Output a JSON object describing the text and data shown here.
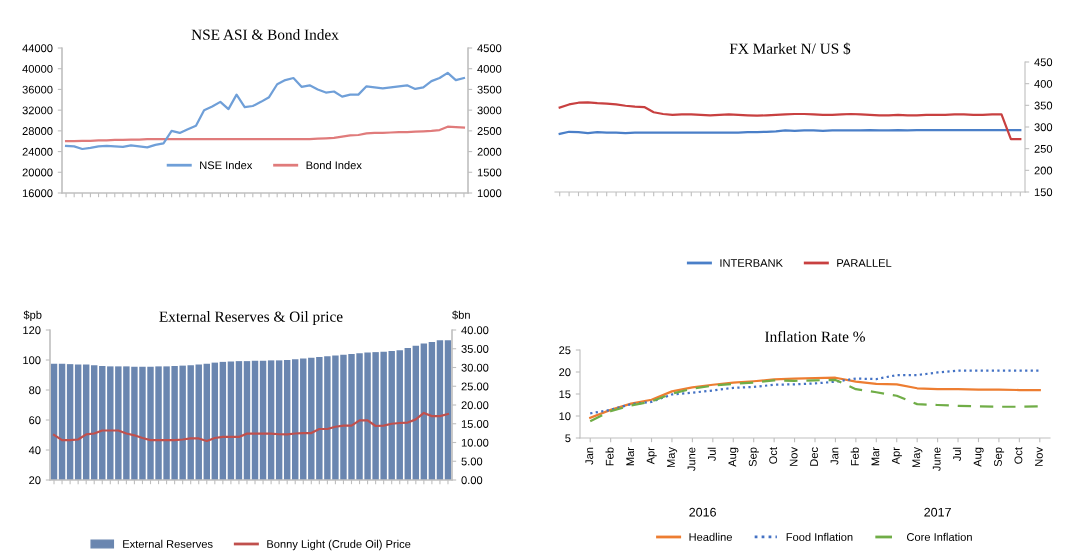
{
  "chart_data": [
    {
      "type": "line",
      "title": "NSE ASI & Bond Index",
      "categories": [
        null,
        null,
        null,
        null,
        null,
        null,
        null,
        null,
        null,
        null,
        null,
        null,
        null,
        null,
        null,
        null,
        null,
        null,
        null,
        null,
        null,
        null,
        null,
        null,
        null,
        null,
        null,
        null,
        null,
        null,
        null,
        null,
        null,
        null,
        null,
        null,
        null,
        null,
        null,
        null,
        null,
        null,
        null,
        null,
        null,
        null,
        null,
        null,
        null,
        null
      ],
      "series": [
        {
          "name": "NSE Index",
          "color": "#6f9fd8",
          "values": [
            25100,
            25000,
            24500,
            24700,
            25000,
            25100,
            25000,
            24900,
            25200,
            25000,
            24800,
            25300,
            25600,
            28000,
            27600,
            28300,
            29000,
            32000,
            32700,
            33600,
            32200,
            35000,
            32600,
            32800,
            33600,
            34500,
            37000,
            37800,
            38200,
            36500,
            36800,
            36000,
            35400,
            35600,
            34600,
            35000,
            35000,
            36600,
            36400,
            36200,
            36400,
            36600,
            36800,
            36100,
            36400,
            37600,
            38200,
            39200,
            37800,
            38200
          ]
        },
        {
          "name": "Bond Index",
          "color": "#e07b7b",
          "axis": "y2",
          "values": [
            2250,
            2250,
            2260,
            2260,
            2270,
            2270,
            2280,
            2280,
            2290,
            2290,
            2300,
            2300,
            2300,
            2300,
            2300,
            2300,
            2300,
            2300,
            2300,
            2300,
            2300,
            2300,
            2300,
            2300,
            2300,
            2300,
            2300,
            2300,
            2300,
            2300,
            2300,
            2310,
            2320,
            2330,
            2360,
            2390,
            2400,
            2440,
            2450,
            2450,
            2460,
            2470,
            2470,
            2480,
            2490,
            2500,
            2520,
            2600,
            2590,
            2580
          ]
        }
      ],
      "ylim": [
        16000,
        44000
      ],
      "yticks": [
        16000,
        20000,
        24000,
        28000,
        32000,
        36000,
        40000,
        44000
      ],
      "y2lim": [
        1000,
        4500
      ],
      "y2ticks": [
        1000,
        1500,
        2000,
        2500,
        3000,
        3500,
        4000,
        4500
      ],
      "line_style": "solid",
      "legend": "bottom inside"
    },
    {
      "type": "line",
      "title": "FX Market N/ US $",
      "categories": [
        null,
        null,
        null,
        null,
        null,
        null,
        null,
        null,
        null,
        null,
        null,
        null,
        null,
        null,
        null,
        null,
        null,
        null,
        null,
        null,
        null,
        null,
        null,
        null,
        null,
        null,
        null,
        null,
        null,
        null,
        null,
        null,
        null,
        null,
        null,
        null,
        null,
        null,
        null,
        null,
        null,
        null,
        null,
        null,
        null,
        null,
        null,
        null,
        null,
        null
      ],
      "series": [
        {
          "name": "INTERBANK",
          "color": "#4a7fc8",
          "values": [
            284,
            289,
            288,
            286,
            288,
            287,
            287,
            286,
            287,
            287,
            287,
            287,
            287,
            287,
            287,
            287,
            287,
            287,
            287,
            287,
            288,
            288,
            289,
            290,
            292,
            291,
            292,
            292,
            291,
            292,
            292,
            292,
            292,
            293,
            292,
            292,
            293,
            292,
            293,
            293,
            293,
            293,
            293,
            293,
            293,
            293,
            293,
            293,
            293,
            293
          ]
        },
        {
          "name": "PARALLEL",
          "color": "#c84040",
          "values": [
            345,
            352,
            356,
            357,
            355,
            354,
            352,
            349,
            347,
            346,
            334,
            330,
            328,
            329,
            329,
            328,
            327,
            328,
            329,
            328,
            327,
            326,
            327,
            328,
            329,
            330,
            330,
            329,
            328,
            328,
            329,
            330,
            329,
            328,
            327,
            327,
            328,
            327,
            327,
            328,
            328,
            328,
            329,
            329,
            328,
            328,
            329,
            329,
            272,
            272
          ]
        }
      ],
      "ylim": [
        150,
        450
      ],
      "yticks": [
        150,
        200,
        250,
        300,
        350,
        400,
        450
      ],
      "line_style": "solid",
      "legend": "bottom"
    },
    {
      "type": "bar",
      "title": "External Reserves & Oil price",
      "ylabel": "$pb",
      "y2label": "$bn",
      "categories": [
        null,
        null,
        null,
        null,
        null,
        null,
        null,
        null,
        null,
        null,
        null,
        null,
        null,
        null,
        null,
        null,
        null,
        null,
        null,
        null,
        null,
        null,
        null,
        null,
        null,
        null,
        null,
        null,
        null,
        null,
        null,
        null,
        null,
        null,
        null,
        null,
        null,
        null,
        null,
        null,
        null,
        null,
        null,
        null,
        null,
        null,
        null,
        null,
        null,
        null
      ],
      "series": [
        {
          "name": "External Reserves",
          "color": "#6a86b0",
          "axis": "y2",
          "values": [
            31.0,
            31.0,
            30.9,
            30.8,
            30.8,
            30.6,
            30.4,
            30.3,
            30.3,
            30.3,
            30.2,
            30.2,
            30.2,
            30.3,
            30.3,
            30.4,
            30.5,
            30.6,
            30.8,
            31.0,
            31.3,
            31.5,
            31.6,
            31.7,
            31.7,
            31.8,
            31.8,
            31.9,
            31.9,
            32.0,
            32.2,
            32.4,
            32.6,
            32.8,
            33.0,
            33.2,
            33.4,
            33.6,
            33.8,
            34.0,
            34.1,
            34.2,
            34.4,
            34.6,
            35.2,
            35.8,
            36.4,
            36.8,
            37.3,
            37.3
          ]
        },
        {
          "name": "Bonny Light (Crude Oil) Price",
          "color": "#c0504d",
          "type": "line",
          "values": [
            50,
            46.6,
            46.6,
            47,
            50.4,
            51,
            53,
            53,
            53,
            51,
            49.8,
            48,
            46.6,
            46.6,
            46.6,
            46.6,
            47,
            47.7,
            47.7,
            46,
            48,
            48.7,
            48.7,
            48.7,
            50.9,
            50.9,
            51,
            50.9,
            50.5,
            50.4,
            51,
            51.3,
            51.3,
            54,
            54,
            55.5,
            56.2,
            56.2,
            59.8,
            59.8,
            56,
            56.2,
            57.5,
            58,
            58.3,
            60.4,
            64.7,
            62.6,
            62.6,
            64
          ]
        }
      ],
      "ylim": [
        20,
        120
      ],
      "yticks": [
        20,
        40,
        60,
        80,
        100,
        120
      ],
      "y2lim": [
        0,
        40
      ],
      "y2ticks": [
        {
          "value": 0,
          "label": "0.00"
        },
        {
          "value": 5,
          "label": "5.00"
        },
        {
          "value": 10,
          "label": "10.00"
        },
        {
          "value": 15,
          "label": "15.00"
        },
        {
          "value": 20,
          "label": "20.00"
        },
        {
          "value": 25,
          "label": "25.00"
        },
        {
          "value": 30,
          "label": "30.00"
        },
        {
          "value": 35,
          "label": "35.00"
        },
        {
          "value": 40,
          "label": "40.00"
        }
      ],
      "legend": "bottom"
    },
    {
      "type": "line",
      "title": "Inflation Rate %",
      "categories": [
        "Jan",
        "Feb",
        "Mar",
        "Apr",
        "May",
        "June",
        "Jul",
        "Aug",
        "Sep",
        "Oct",
        "Nov",
        "Dec",
        "Jan",
        "Feb",
        "Mar",
        "Apr",
        "May",
        "June",
        "Jul",
        "Aug",
        "Sep",
        "Oct",
        "Nov"
      ],
      "series": [
        {
          "name": "Headline",
          "color": "#ed7d31",
          "line_style": "solid",
          "values": [
            9.6,
            11.4,
            12.8,
            13.7,
            15.6,
            16.5,
            17.1,
            17.6,
            17.9,
            18.3,
            18.5,
            18.6,
            18.7,
            17.8,
            17.3,
            17.2,
            16.3,
            16.1,
            16.1,
            16.0,
            16.0,
            15.9,
            15.9
          ]
        },
        {
          "name": "Food Inflation",
          "color": "#4472c4",
          "line_style": "dotted",
          "values": [
            10.6,
            11.4,
            12.7,
            13.2,
            14.9,
            15.3,
            15.8,
            16.4,
            16.6,
            17.1,
            17.2,
            17.4,
            17.8,
            18.5,
            18.4,
            19.3,
            19.3,
            19.9,
            20.3,
            20.3,
            20.3,
            20.3,
            20.3
          ]
        },
        {
          "name": "Core Inflation",
          "color": "#70ad47",
          "line_style": "dashed",
          "values": [
            8.8,
            11.1,
            12.4,
            13.3,
            15.1,
            16.2,
            16.9,
            17.3,
            17.6,
            18.1,
            18.0,
            18.1,
            18.2,
            16.1,
            15.4,
            14.6,
            12.7,
            12.5,
            12.3,
            12.2,
            12.1,
            12.1,
            12.2
          ]
        }
      ],
      "ylim": [
        5,
        25
      ],
      "yticks": [
        5,
        10,
        15,
        20,
        25
      ],
      "annotations": [
        "2016",
        "2017"
      ],
      "legend": "bottom"
    }
  ]
}
